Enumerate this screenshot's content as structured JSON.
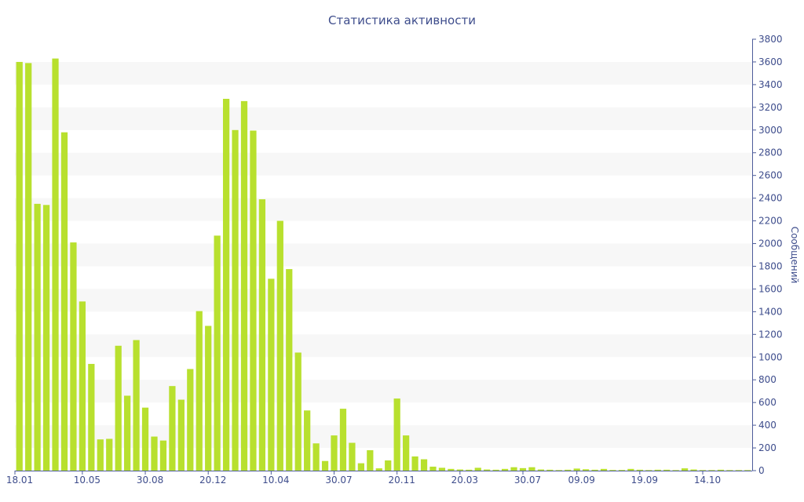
{
  "chart_data": {
    "type": "bar",
    "title": "Статистика активности",
    "ylabel": "Сообщений",
    "xlabel": "",
    "ylim": [
      0,
      3800
    ],
    "y_ticks": [
      0,
      200,
      400,
      600,
      800,
      1000,
      1200,
      1400,
      1600,
      1800,
      2000,
      2200,
      2400,
      2600,
      2800,
      3000,
      3200,
      3400,
      3600,
      3800
    ],
    "x_tick_labels": [
      {
        "label": "18.01",
        "index": 0
      },
      {
        "label": "10.05",
        "index": 7
      },
      {
        "label": "30.08",
        "index": 14
      },
      {
        "label": "20.12",
        "index": 21
      },
      {
        "label": "10.04",
        "index": 28
      },
      {
        "label": "30.07",
        "index": 35
      },
      {
        "label": "20.11",
        "index": 42
      },
      {
        "label": "20.03",
        "index": 49
      },
      {
        "label": "30.07",
        "index": 56
      },
      {
        "label": "09.09",
        "index": 62
      },
      {
        "label": "19.09",
        "index": 69
      },
      {
        "label": "14.10",
        "index": 76
      }
    ],
    "values": [
      3600,
      3590,
      2350,
      2340,
      3630,
      2980,
      2010,
      1490,
      940,
      275,
      280,
      1100,
      660,
      1150,
      555,
      300,
      265,
      745,
      625,
      895,
      1405,
      1275,
      2070,
      3275,
      3000,
      3255,
      2995,
      2390,
      1690,
      2200,
      1775,
      1040,
      530,
      240,
      85,
      310,
      545,
      245,
      65,
      180,
      20,
      90,
      635,
      310,
      125,
      100,
      35,
      25,
      15,
      10,
      8,
      25,
      10,
      8,
      15,
      30,
      22,
      30,
      10,
      8,
      5,
      8,
      18,
      12,
      8,
      15,
      6,
      6,
      15,
      8,
      5,
      8,
      8,
      5,
      20,
      10,
      5,
      5,
      8,
      5,
      5,
      5
    ],
    "grid": "alternating-bands",
    "colors": {
      "bar": "#b8e02e",
      "band": "#f7f7f7",
      "text": "#3e4d8c",
      "axis": "#4d5c9a"
    }
  }
}
